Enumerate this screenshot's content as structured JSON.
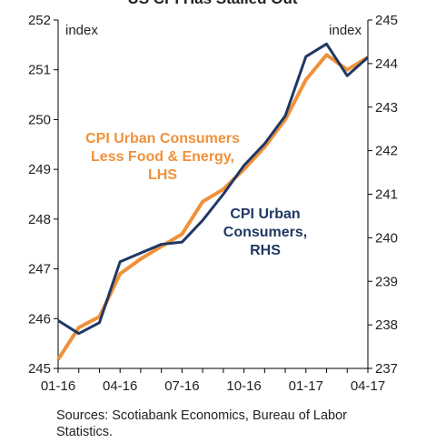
{
  "chart_data": {
    "type": "line",
    "title": "US CPI Has Stalled Out",
    "y_label": "index",
    "y2_label": "index",
    "categories": [
      "01-16",
      null,
      null,
      "04-16",
      null,
      null,
      "07-16",
      null,
      null,
      "10-16",
      null,
      null,
      "01-17",
      null,
      null,
      "04-17"
    ],
    "series": [
      {
        "name": "CPI Urban Consumers Less Food & Energy, LHS",
        "color": "#f0913a",
        "values": [
          245.18,
          245.82,
          246.04,
          246.9,
          247.2,
          247.45,
          247.7,
          248.35,
          248.6,
          249.0,
          249.45,
          250.0,
          250.8,
          251.3,
          251.0,
          251.25
        ]
      },
      {
        "name": "CPI Urban Consumers, RHS",
        "color": "#1f3864",
        "axis": "y2",
        "values": [
          238.1,
          237.8,
          238.05,
          239.45,
          239.65,
          239.85,
          239.9,
          240.4,
          241.0,
          241.66,
          242.16,
          242.8,
          244.16,
          244.45,
          243.72,
          244.14
        ]
      }
    ],
    "ylim": [
      245,
      252
    ],
    "yticks": [
      245,
      246,
      247,
      248,
      249,
      250,
      251,
      252
    ],
    "y2lim": [
      237,
      245
    ],
    "y2ticks": [
      237,
      238,
      239,
      240,
      241,
      242,
      243,
      244,
      245
    ],
    "source": "Sources: Scotiabank Economics, Bureau of Labor Statistics."
  }
}
